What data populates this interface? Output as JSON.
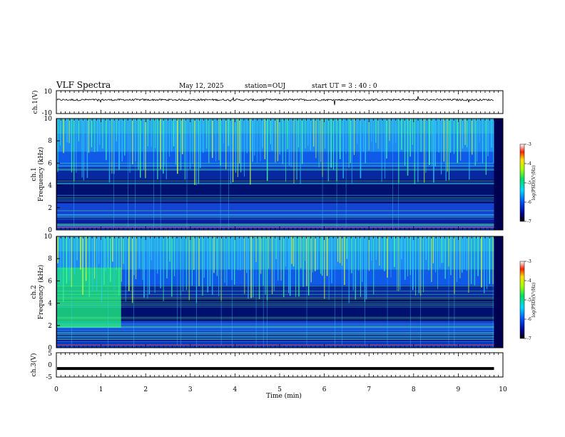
{
  "header": {
    "title": "VLF Spectra",
    "date": "May 12, 2025",
    "station": "station=OUJ",
    "start": "start UT =  3 : 40 : 0"
  },
  "colors": {
    "spectrogram_low": "#000066",
    "spectrogram_mid": "#1a6cff",
    "spectrogram_high": "#00e070",
    "trace": "#000000"
  },
  "chart_data": [
    {
      "type": "line",
      "name": "ch1-waveform",
      "ylabel": "ch.1(V)",
      "ylim": [
        -10,
        10
      ],
      "y_ticks": [
        "10",
        "-10"
      ],
      "baseline": 2,
      "xlim": [
        0,
        10
      ],
      "data_end": 9.8
    },
    {
      "type": "heatmap",
      "name": "ch1-spectrogram",
      "ylabel_channel": "ch.1",
      "ylabel": "Frequency (kHz)",
      "ylim": [
        0,
        10
      ],
      "y_ticks": [
        "0",
        "2",
        "4",
        "6",
        "8",
        "10"
      ],
      "xlim": [
        0,
        10
      ],
      "data_end": 9.8,
      "colorbar": {
        "label": "log(PSD)(V²/Hz)",
        "range": [
          -7,
          -3
        ],
        "ticks": [
          "-3",
          "-4",
          "-5",
          "-6",
          "-7"
        ]
      }
    },
    {
      "type": "heatmap",
      "name": "ch2-spectrogram",
      "ylabel_channel": "ch.2",
      "ylabel": "Frequency (kHz)",
      "ylim": [
        0,
        10
      ],
      "y_ticks": [
        "0",
        "2",
        "4",
        "6",
        "8",
        "10"
      ],
      "xlim": [
        0,
        10
      ],
      "data_end": 9.8,
      "enhanced_band": {
        "t_end": 1.45,
        "f_low": 1.8,
        "f_high": 7.2
      },
      "colorbar": {
        "label": "log(PSD)(V²/Hz)",
        "range": [
          -7,
          -3
        ],
        "ticks": [
          "-3",
          "-4",
          "-5",
          "-6",
          "-7"
        ]
      }
    },
    {
      "type": "line",
      "name": "ch3-waveform",
      "ylabel": "ch.3(V)",
      "ylim": [
        -5,
        5
      ],
      "y_ticks": [
        "5",
        "0",
        "-5"
      ],
      "baseline": -1.5,
      "xlim": [
        0,
        10
      ],
      "data_end": 9.8
    }
  ],
  "xaxis": {
    "label": "Time (min)",
    "ticks": [
      "0",
      "1",
      "2",
      "3",
      "4",
      "5",
      "6",
      "7",
      "8",
      "9",
      "10"
    ]
  }
}
